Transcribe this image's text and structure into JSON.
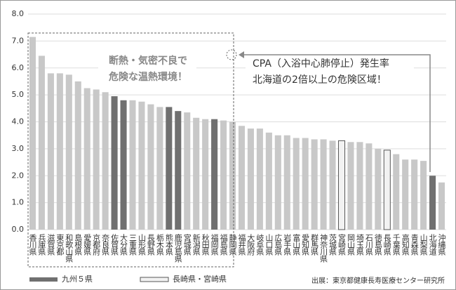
{
  "chart_data": {
    "type": "bar",
    "categories": [
      "香川県",
      "兵庫県",
      "滋賀県",
      "東京都",
      "和歌山県",
      "島根県",
      "愛媛県",
      "京都府",
      "奈良県",
      "佐賀県",
      "大分県",
      "三重県",
      "山形県",
      "長野県",
      "栃木県",
      "熊本県",
      "鹿児島県",
      "宮城県",
      "新潟県",
      "秋田県",
      "福岡県",
      "福島県",
      "静岡県",
      "福井県",
      "大阪府",
      "岐阜県",
      "山口県",
      "広島県",
      "岩手県",
      "富山県",
      "愛知県",
      "群馬県",
      "神奈川県",
      "茨城県",
      "宮崎県",
      "岡山県",
      "埼玉県",
      "石川県",
      "徳島県",
      "長崎県",
      "千葉県",
      "高知県",
      "青森県",
      "山梨県",
      "北海道",
      "沖縄県"
    ],
    "values": [
      7.15,
      6.45,
      5.8,
      5.8,
      5.75,
      5.5,
      5.25,
      5.2,
      5.1,
      4.95,
      4.8,
      4.8,
      4.75,
      4.65,
      4.55,
      4.55,
      4.4,
      4.35,
      4.15,
      4.1,
      4.1,
      4.05,
      4.0,
      3.85,
      3.75,
      3.75,
      3.6,
      3.5,
      3.5,
      3.4,
      3.4,
      3.35,
      3.35,
      3.3,
      3.3,
      3.25,
      3.25,
      3.2,
      3.0,
      2.95,
      2.8,
      2.6,
      2.6,
      2.55,
      2.0,
      1.75
    ],
    "colors": [
      "#c8c8c8",
      "#c8c8c8",
      "#c8c8c8",
      "#c8c8c8",
      "#c8c8c8",
      "#c8c8c8",
      "#c8c8c8",
      "#c8c8c8",
      "#c8c8c8",
      "#707070",
      "#707070",
      "#c8c8c8",
      "#c8c8c8",
      "#c8c8c8",
      "#c8c8c8",
      "#707070",
      "#707070",
      "#c8c8c8",
      "#c8c8c8",
      "#c8c8c8",
      "#707070",
      "#c8c8c8",
      "#c8c8c8",
      "#c8c8c8",
      "#c8c8c8",
      "#c8c8c8",
      "#c8c8c8",
      "#c8c8c8",
      "#c8c8c8",
      "#c8c8c8",
      "#c8c8c8",
      "#c8c8c8",
      "#c8c8c8",
      "#c8c8c8",
      "#f2f2f2",
      "#c8c8c8",
      "#c8c8c8",
      "#c8c8c8",
      "#c8c8c8",
      "#f2f2f2",
      "#c8c8c8",
      "#c8c8c8",
      "#c8c8c8",
      "#c8c8c8",
      "#707070",
      "#c8c8c8"
    ],
    "ylim": [
      0,
      8
    ],
    "yticks": [
      {
        "value": 0,
        "label": "0.0"
      },
      {
        "value": 1,
        "label": "1.0"
      },
      {
        "value": 2,
        "label": "2.0"
      },
      {
        "value": 3,
        "label": "3.0"
      },
      {
        "value": 4,
        "label": "4.0"
      },
      {
        "value": 5,
        "label": "5.0"
      },
      {
        "value": 6,
        "label": "6.0"
      },
      {
        "value": 7,
        "label": "7.0"
      },
      {
        "value": 8,
        "label": "8.0"
      }
    ],
    "grid": true,
    "legend": [
      {
        "name": "九州５県",
        "color": "#707070"
      },
      {
        "name": "長崎県・宮崎県",
        "color": "#f2f2f2"
      }
    ],
    "annotations": [
      "断熱・気密不良で",
      "危険な温熱環境！",
      "CPA（入浴中心肺停止）発生率",
      "北海道の2倍以上の危険区域！"
    ],
    "source": "出展：東京都健康長寿医療センター研究所"
  }
}
